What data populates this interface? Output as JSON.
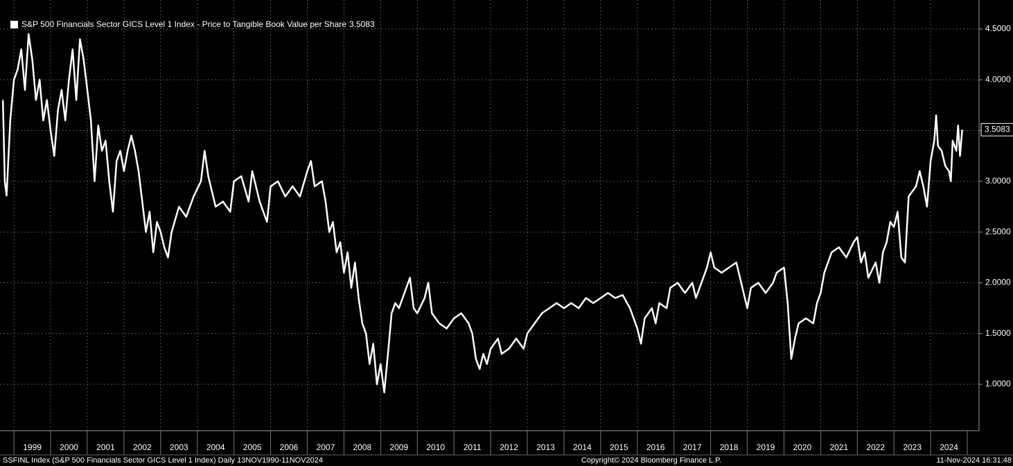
{
  "chart_data": {
    "type": "line",
    "series": [
      {
        "name": "S&P 500 Financials Sector GICS Level 1 Index - Price to Tangible Book Value per Share",
        "color": "#ffffff",
        "x": [
          1998.7,
          1998.75,
          1998.8,
          1998.9,
          1999.0,
          1999.1,
          1999.2,
          1999.3,
          1999.4,
          1999.5,
          1999.6,
          1999.7,
          1999.8,
          1999.9,
          2000.0,
          2000.1,
          2000.2,
          2000.3,
          2000.4,
          2000.5,
          2000.6,
          2000.7,
          2000.8,
          2000.9,
          2001.0,
          2001.1,
          2001.2,
          2001.3,
          2001.4,
          2001.5,
          2001.6,
          2001.7,
          2001.8,
          2001.9,
          2002.0,
          2002.1,
          2002.2,
          2002.3,
          2002.4,
          2002.5,
          2002.6,
          2002.7,
          2002.8,
          2002.9,
          2003.0,
          2003.1,
          2003.2,
          2003.3,
          2003.5,
          2003.7,
          2003.9,
          2004.1,
          2004.2,
          2004.3,
          2004.5,
          2004.7,
          2004.9,
          2005.0,
          2005.2,
          2005.4,
          2005.5,
          2005.7,
          2005.9,
          2006.0,
          2006.2,
          2006.4,
          2006.6,
          2006.8,
          2007.0,
          2007.1,
          2007.2,
          2007.4,
          2007.5,
          2007.6,
          2007.7,
          2007.8,
          2007.9,
          2008.0,
          2008.1,
          2008.2,
          2008.3,
          2008.4,
          2008.5,
          2008.6,
          2008.7,
          2008.8,
          2008.9,
          2009.0,
          2009.1,
          2009.2,
          2009.3,
          2009.4,
          2009.5,
          2009.7,
          2009.8,
          2009.9,
          2010.0,
          2010.2,
          2010.3,
          2010.4,
          2010.6,
          2010.8,
          2011.0,
          2011.2,
          2011.4,
          2011.5,
          2011.6,
          2011.7,
          2011.8,
          2011.9,
          2012.0,
          2012.2,
          2012.3,
          2012.5,
          2012.7,
          2012.9,
          2013.0,
          2013.2,
          2013.4,
          2013.6,
          2013.8,
          2014.0,
          2014.2,
          2014.4,
          2014.6,
          2014.8,
          2015.0,
          2015.2,
          2015.4,
          2015.6,
          2015.8,
          2016.0,
          2016.1,
          2016.2,
          2016.4,
          2016.5,
          2016.6,
          2016.8,
          2016.9,
          2017.1,
          2017.3,
          2017.5,
          2017.6,
          2017.8,
          2017.9,
          2018.0,
          2018.1,
          2018.3,
          2018.5,
          2018.7,
          2018.9,
          2019.0,
          2019.1,
          2019.3,
          2019.5,
          2019.7,
          2019.8,
          2020.0,
          2020.1,
          2020.2,
          2020.3,
          2020.4,
          2020.6,
          2020.8,
          2020.9,
          2021.0,
          2021.1,
          2021.3,
          2021.5,
          2021.7,
          2021.9,
          2022.0,
          2022.1,
          2022.2,
          2022.3,
          2022.5,
          2022.6,
          2022.7,
          2022.8,
          2022.9,
          2023.0,
          2023.1,
          2023.2,
          2023.3,
          2023.4,
          2023.6,
          2023.7,
          2023.8,
          2023.9,
          2024.0,
          2024.1,
          2024.15,
          2024.2,
          2024.3,
          2024.4,
          2024.5,
          2024.55,
          2024.6,
          2024.7,
          2024.75,
          2024.8,
          2024.86
        ],
        "values": [
          3.8,
          3.0,
          2.86,
          3.6,
          4.0,
          4.1,
          4.3,
          3.9,
          4.45,
          4.2,
          3.8,
          4.0,
          3.6,
          3.8,
          3.5,
          3.25,
          3.7,
          3.9,
          3.6,
          4.0,
          4.3,
          3.8,
          4.4,
          4.2,
          3.9,
          3.6,
          3.0,
          3.55,
          3.3,
          3.4,
          3.0,
          2.7,
          3.2,
          3.3,
          3.1,
          3.3,
          3.45,
          3.3,
          3.1,
          2.8,
          2.5,
          2.7,
          2.3,
          2.6,
          2.5,
          2.35,
          2.25,
          2.5,
          2.75,
          2.65,
          2.85,
          3.0,
          3.3,
          3.05,
          2.75,
          2.8,
          2.7,
          3.0,
          3.05,
          2.8,
          3.1,
          2.8,
          2.6,
          2.95,
          3.0,
          2.85,
          2.95,
          2.85,
          3.1,
          3.2,
          2.95,
          3.0,
          2.8,
          2.5,
          2.6,
          2.3,
          2.4,
          2.1,
          2.3,
          1.95,
          2.2,
          1.85,
          1.6,
          1.5,
          1.2,
          1.4,
          1.0,
          1.2,
          0.92,
          1.3,
          1.7,
          1.8,
          1.75,
          1.95,
          2.05,
          1.75,
          1.7,
          1.85,
          2.0,
          1.7,
          1.6,
          1.55,
          1.65,
          1.7,
          1.6,
          1.5,
          1.25,
          1.15,
          1.3,
          1.2,
          1.35,
          1.45,
          1.3,
          1.35,
          1.45,
          1.35,
          1.5,
          1.6,
          1.7,
          1.75,
          1.8,
          1.75,
          1.8,
          1.75,
          1.85,
          1.8,
          1.85,
          1.9,
          1.85,
          1.88,
          1.75,
          1.55,
          1.4,
          1.65,
          1.75,
          1.6,
          1.8,
          1.75,
          1.95,
          2.0,
          1.9,
          2.0,
          1.85,
          2.05,
          2.15,
          2.3,
          2.15,
          2.1,
          2.15,
          2.2,
          1.9,
          1.75,
          1.95,
          2.0,
          1.9,
          2.0,
          2.1,
          2.15,
          1.8,
          1.25,
          1.45,
          1.6,
          1.65,
          1.6,
          1.8,
          1.9,
          2.1,
          2.3,
          2.35,
          2.25,
          2.4,
          2.45,
          2.2,
          2.3,
          2.05,
          2.2,
          2.0,
          2.3,
          2.4,
          2.6,
          2.55,
          2.7,
          2.25,
          2.2,
          2.85,
          2.95,
          3.1,
          2.95,
          2.75,
          3.2,
          3.4,
          3.65,
          3.35,
          3.3,
          3.15,
          3.1,
          3.0,
          3.4,
          3.3,
          3.55,
          3.25,
          3.5083
        ]
      }
    ],
    "xlim": [
      1998.62,
      2025.32
    ],
    "xticks": [
      1999,
      2000,
      2001,
      2002,
      2003,
      2004,
      2005,
      2006,
      2007,
      2008,
      2009,
      2010,
      2011,
      2012,
      2013,
      2014,
      2015,
      2016,
      2017,
      2018,
      2019,
      2020,
      2021,
      2022,
      2023,
      2024
    ],
    "ylim": [
      0.543,
      4.786
    ],
    "yticks": [
      {
        "value": 1.0,
        "label": "1.0000"
      },
      {
        "value": 1.5,
        "label": "1.5000"
      },
      {
        "value": 2.0,
        "label": "2.0000"
      },
      {
        "value": 2.5,
        "label": "2.5000"
      },
      {
        "value": 3.0,
        "label": "3.0000"
      },
      {
        "value": 3.5,
        "label": "3.5000"
      },
      {
        "value": 4.0,
        "label": "4.0000"
      },
      {
        "value": 4.5,
        "label": "4.5000"
      }
    ],
    "grid": true,
    "legend": "upper left",
    "footer": {
      "left": "SSFINL Index (S&P 500 Financials Sector GICS Level 1 Index)  Daily 13NOV1990-11NOV2024",
      "center": "Copyright© 2024 Bloomberg Finance L.P.",
      "right": "11-Nov-2024 16:31:48"
    }
  }
}
